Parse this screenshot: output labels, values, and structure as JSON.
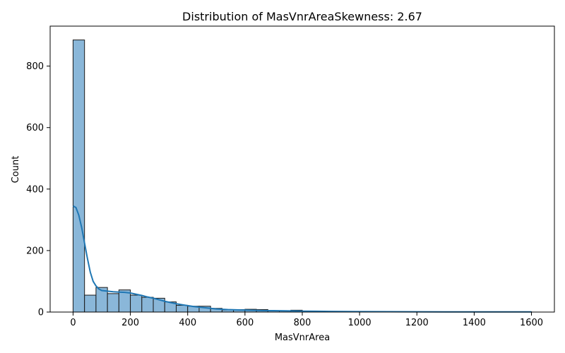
{
  "chart_data": {
    "type": "bar",
    "title": "Distribution of MasVnrAreaSkewness: 2.67",
    "xlabel": "MasVnrArea",
    "ylabel": "Count",
    "xlim": [
      -80,
      1680
    ],
    "ylim": [
      0,
      930
    ],
    "x_ticks": [
      0,
      200,
      400,
      600,
      800,
      1000,
      1200,
      1400,
      1600
    ],
    "y_ticks": [
      0,
      200,
      400,
      600,
      800
    ],
    "bin_width": 40,
    "bins": [
      {
        "x0": 0,
        "x1": 40,
        "count": 885
      },
      {
        "x0": 40,
        "x1": 80,
        "count": 55
      },
      {
        "x0": 80,
        "x1": 120,
        "count": 80
      },
      {
        "x0": 120,
        "x1": 160,
        "count": 60
      },
      {
        "x0": 160,
        "x1": 200,
        "count": 72
      },
      {
        "x0": 200,
        "x1": 240,
        "count": 55
      },
      {
        "x0": 240,
        "x1": 280,
        "count": 48
      },
      {
        "x0": 280,
        "x1": 320,
        "count": 45
      },
      {
        "x0": 320,
        "x1": 360,
        "count": 33
      },
      {
        "x0": 360,
        "x1": 400,
        "count": 22
      },
      {
        "x0": 400,
        "x1": 440,
        "count": 19
      },
      {
        "x0": 440,
        "x1": 480,
        "count": 19
      },
      {
        "x0": 480,
        "x1": 520,
        "count": 12
      },
      {
        "x0": 520,
        "x1": 560,
        "count": 7
      },
      {
        "x0": 560,
        "x1": 600,
        "count": 8
      },
      {
        "x0": 600,
        "x1": 640,
        "count": 9
      },
      {
        "x0": 640,
        "x1": 680,
        "count": 8
      },
      {
        "x0": 680,
        "x1": 720,
        "count": 4
      },
      {
        "x0": 720,
        "x1": 760,
        "count": 4
      },
      {
        "x0": 760,
        "x1": 800,
        "count": 6
      },
      {
        "x0": 800,
        "x1": 840,
        "count": 2
      },
      {
        "x0": 840,
        "x1": 880,
        "count": 2
      },
      {
        "x0": 880,
        "x1": 920,
        "count": 2
      },
      {
        "x0": 920,
        "x1": 960,
        "count": 1
      },
      {
        "x0": 960,
        "x1": 1000,
        "count": 1
      },
      {
        "x0": 1000,
        "x1": 1040,
        "count": 1
      },
      {
        "x0": 1040,
        "x1": 1080,
        "count": 1
      },
      {
        "x0": 1080,
        "x1": 1120,
        "count": 1
      },
      {
        "x0": 1120,
        "x1": 1160,
        "count": 1
      },
      {
        "x0": 1160,
        "x1": 1200,
        "count": 1
      },
      {
        "x0": 1200,
        "x1": 1240,
        "count": 0
      },
      {
        "x0": 1240,
        "x1": 1280,
        "count": 0
      },
      {
        "x0": 1280,
        "x1": 1320,
        "count": 0
      },
      {
        "x0": 1320,
        "x1": 1360,
        "count": 0
      },
      {
        "x0": 1360,
        "x1": 1400,
        "count": 0
      },
      {
        "x0": 1400,
        "x1": 1440,
        "count": 0
      },
      {
        "x0": 1440,
        "x1": 1480,
        "count": 0
      },
      {
        "x0": 1480,
        "x1": 1520,
        "count": 0
      },
      {
        "x0": 1520,
        "x1": 1560,
        "count": 0
      },
      {
        "x0": 1560,
        "x1": 1600,
        "count": 1
      }
    ],
    "kde": {
      "x": [
        0,
        10,
        20,
        30,
        40,
        50,
        60,
        70,
        80,
        90,
        100,
        120,
        140,
        160,
        180,
        200,
        220,
        240,
        260,
        280,
        300,
        320,
        340,
        360,
        380,
        400,
        420,
        440,
        460,
        480,
        500,
        540,
        580,
        620,
        660,
        700,
        740,
        780,
        800,
        850,
        900,
        1000,
        1100,
        1200,
        1300,
        1400,
        1500,
        1600
      ],
      "y": [
        345,
        340,
        315,
        275,
        225,
        175,
        130,
        100,
        85,
        75,
        70,
        68,
        66,
        65,
        64,
        62,
        58,
        54,
        49,
        45,
        40,
        35,
        31,
        27,
        24,
        21,
        18,
        16,
        14,
        12,
        10,
        8,
        7,
        6,
        5,
        4.5,
        4,
        3.5,
        3,
        2.5,
        2,
        1.5,
        1,
        0.8,
        0.6,
        0.5,
        0.5,
        0.5
      ]
    },
    "grid": false,
    "legend": "none",
    "colors": {
      "bar_fill": "#8ab7d9",
      "bar_edge": "#1a1a1a",
      "kde_line": "#1f77b4"
    }
  }
}
